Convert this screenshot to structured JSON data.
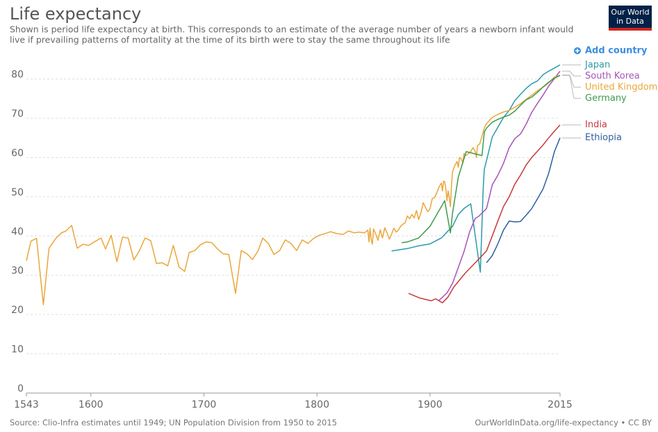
{
  "chart_data": {
    "type": "line",
    "title": "Life expectancy",
    "subtitle": [
      "Shown is period life expectancy at birth. This corresponds to an estimate of the average number of years a newborn infant would",
      "live if prevailing patterns of mortality at the time of its birth were to stay the same throughout its life"
    ],
    "xlim": [
      1543,
      2015
    ],
    "xticks": [
      1543,
      1600,
      1700,
      1800,
      1900,
      2015
    ],
    "ylim": [
      0,
      84
    ],
    "yticks": [
      0,
      10,
      20,
      30,
      40,
      50,
      60,
      70,
      80
    ],
    "grid": true,
    "series": [
      {
        "name": "Japan",
        "color": "#2c9aa8",
        "x": [
          1866,
          1880,
          1890,
          1900,
          1910,
          1920,
          1925,
          1930,
          1936,
          1944.5,
          1947,
          1948,
          1950,
          1955,
          1960,
          1965,
          1970,
          1975,
          1980,
          1985,
          1990,
          1995,
          2000,
          2005,
          2010,
          2015
        ],
        "values": [
          36.2,
          36.8,
          37.5,
          38.0,
          39.5,
          42.5,
          45.5,
          47.0,
          48.2,
          30.8,
          52.0,
          57.0,
          59.2,
          65.2,
          67.7,
          70.2,
          72.0,
          74.5,
          76.1,
          77.6,
          78.8,
          79.5,
          81.1,
          82.0,
          82.8,
          83.6
        ]
      },
      {
        "name": "South Korea",
        "color": "#a652ba",
        "x": [
          1908,
          1915,
          1920,
          1925,
          1930,
          1935,
          1940,
          1943,
          1950,
          1955,
          1960,
          1965,
          1970,
          1975,
          1980,
          1985,
          1990,
          1995,
          2000,
          2005,
          2010,
          2015
        ],
        "values": [
          23.6,
          25.5,
          28.0,
          32.0,
          36.0,
          41.0,
          44.5,
          45.0,
          47.0,
          53.0,
          55.5,
          58.5,
          62.5,
          64.8,
          66.0,
          68.5,
          71.5,
          73.8,
          75.9,
          78.2,
          80.1,
          82.0
        ]
      },
      {
        "name": "United Kingdom",
        "color": "#e9a63b",
        "x": [
          1543,
          1547,
          1552,
          1558,
          1563,
          1569,
          1574,
          1578,
          1583,
          1588,
          1593,
          1598,
          1603,
          1609,
          1613,
          1618,
          1623,
          1628,
          1633,
          1638,
          1643,
          1648,
          1653,
          1658,
          1663,
          1668,
          1673,
          1678,
          1683,
          1687,
          1692,
          1697,
          1702,
          1707,
          1712,
          1717,
          1722,
          1728,
          1733,
          1738,
          1743,
          1748,
          1752,
          1757,
          1762,
          1767,
          1772,
          1777,
          1782,
          1787,
          1792,
          1797,
          1802,
          1807,
          1812,
          1818,
          1823,
          1828,
          1833,
          1837,
          1842,
          1845,
          1846,
          1847,
          1848,
          1849,
          1850,
          1852,
          1854,
          1856,
          1858,
          1860,
          1862,
          1864,
          1866,
          1868,
          1870,
          1872,
          1874,
          1876,
          1878,
          1880,
          1882,
          1884,
          1886,
          1888,
          1890,
          1892,
          1894,
          1896,
          1898,
          1900,
          1902,
          1904,
          1906,
          1908,
          1910,
          1911,
          1912,
          1913,
          1914,
          1915,
          1916,
          1917,
          1918,
          1919,
          1920,
          1922,
          1924,
          1925,
          1926,
          1928,
          1929,
          1930,
          1932,
          1934,
          1936,
          1938,
          1940,
          1941,
          1942,
          1944,
          1946,
          1948,
          1950,
          1955,
          1960,
          1965,
          1970,
          1975,
          1980,
          1985,
          1990,
          1995,
          2000,
          2005,
          2010,
          2015
        ],
        "values": [
          33.7,
          38.7,
          39.4,
          22.5,
          36.9,
          39.4,
          40.8,
          41.3,
          42.7,
          36.9,
          37.9,
          37.6,
          38.5,
          39.5,
          36.7,
          40.2,
          33.5,
          39.7,
          39.5,
          33.9,
          36.3,
          39.5,
          38.8,
          33.0,
          33.2,
          32.4,
          37.6,
          32.1,
          31.0,
          35.8,
          36.3,
          37.8,
          38.5,
          38.3,
          36.7,
          35.5,
          35.3,
          25.4,
          36.3,
          35.5,
          34.0,
          36.3,
          39.5,
          38.1,
          35.3,
          36.3,
          39.0,
          38.1,
          36.3,
          39.0,
          38.1,
          39.4,
          40.2,
          40.6,
          41.1,
          40.6,
          40.4,
          41.3,
          40.8,
          41.0,
          40.8,
          41.5,
          38.5,
          42.0,
          39.0,
          37.9,
          41.8,
          40.5,
          38.9,
          41.6,
          39.5,
          42.1,
          40.8,
          39.2,
          40.5,
          42.0,
          41.0,
          41.5,
          42.5,
          43.0,
          43.4,
          45.1,
          44.4,
          45.5,
          44.6,
          46.5,
          44.2,
          46.0,
          48.5,
          47.3,
          46.2,
          47.0,
          49.5,
          49.8,
          51.0,
          52.5,
          53.5,
          51.5,
          54.0,
          53.8,
          52.0,
          49.0,
          51.5,
          50.0,
          47.5,
          53.0,
          56.5,
          58.0,
          59.0,
          57.5,
          60.0,
          59.5,
          58.5,
          61.0,
          60.5,
          61.0,
          61.5,
          62.5,
          61.5,
          60.0,
          63.0,
          63.5,
          65.5,
          67.5,
          68.6,
          70.2,
          71.0,
          71.6,
          72.0,
          72.8,
          73.7,
          74.8,
          75.9,
          77.0,
          77.9,
          79.0,
          80.5,
          81.0
        ]
      },
      {
        "name": "Germany",
        "color": "#3e9a4c",
        "x": [
          1875,
          1880,
          1890,
          1900,
          1910,
          1913,
          1918,
          1920,
          1925,
          1932,
          1946,
          1948,
          1950,
          1955,
          1960,
          1965,
          1970,
          1975,
          1980,
          1985,
          1990,
          1995,
          2000,
          2005,
          2010,
          2015
        ],
        "values": [
          38.3,
          38.5,
          39.5,
          42.5,
          47.5,
          49.0,
          40.8,
          46.0,
          55.0,
          61.5,
          60.5,
          66.5,
          67.5,
          69.0,
          69.7,
          70.3,
          70.8,
          71.8,
          73.3,
          74.7,
          75.4,
          76.6,
          78.0,
          79.2,
          80.2,
          80.9
        ]
      },
      {
        "name": "India",
        "color": "#c5383d",
        "x": [
          1881,
          1891,
          1901,
          1905,
          1911,
          1916,
          1921,
          1931,
          1941,
          1950,
          1955,
          1960,
          1965,
          1970,
          1975,
          1980,
          1985,
          1990,
          1995,
          2000,
          2005,
          2010,
          2015
        ],
        "values": [
          25.4,
          24.2,
          23.5,
          24.0,
          23.0,
          24.5,
          27.0,
          30.5,
          33.5,
          36.2,
          40.0,
          43.8,
          47.5,
          50.0,
          53.2,
          55.5,
          58.1,
          60.0,
          61.6,
          63.2,
          65.0,
          66.7,
          68.3
        ]
      },
      {
        "name": "Ethiopia",
        "color": "#2f5ea1",
        "x": [
          1950,
          1955,
          1960,
          1965,
          1970,
          1975,
          1980,
          1985,
          1990,
          1995,
          2000,
          2005,
          2010,
          2015
        ],
        "values": [
          33.2,
          35.0,
          38.0,
          41.5,
          43.8,
          43.6,
          43.7,
          45.3,
          47.0,
          49.5,
          52.0,
          56.0,
          61.5,
          65.0
        ]
      }
    ]
  },
  "controls": {
    "add_country": "Add country"
  },
  "logo": [
    "Our World",
    "in Data"
  ],
  "footer": {
    "source": "Source: Clio-Infra estimates until 1949; UN Population Division from 1950 to 2015",
    "license": "OurWorldInData.org/life-expectancy • CC BY"
  }
}
